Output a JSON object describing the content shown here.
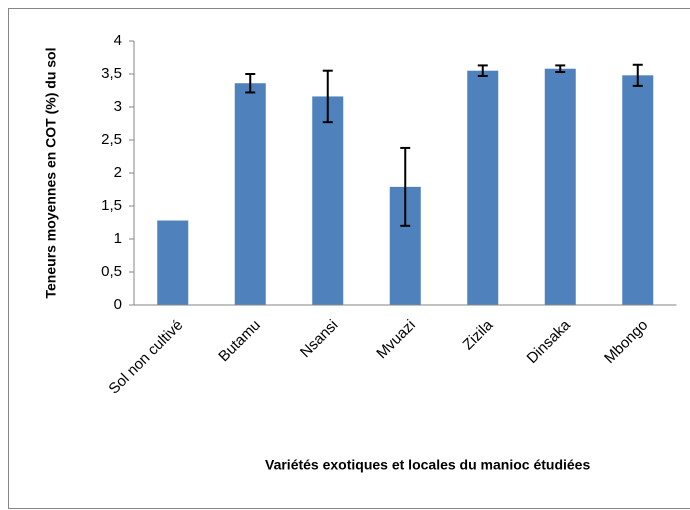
{
  "chart_data": {
    "type": "bar",
    "ylabel": "Teneurs moyennes en COT (%) du sol",
    "xlabel": "Variétés exotiques et locales du manioc étudiées",
    "categories": [
      "Sol non cultivé",
      "Butamu",
      "Nsansi",
      "Mvuazi",
      "Zizila",
      "Dinsaka",
      "Mbongo"
    ],
    "values": [
      1.28,
      3.36,
      3.16,
      1.79,
      3.55,
      3.58,
      3.48
    ],
    "errors": [
      null,
      0.14,
      0.39,
      0.59,
      0.08,
      0.05,
      0.16
    ],
    "color": "#4f81bd",
    "ylim": [
      0,
      4
    ],
    "yticks": [
      0,
      {
        "value": 0.5,
        "label": "0,5"
      },
      1,
      {
        "value": 1.5,
        "label": "1,5"
      },
      2,
      {
        "value": 2.5,
        "label": "2,5"
      },
      3,
      {
        "value": 3.5,
        "label": "3,5"
      },
      4
    ],
    "grid": false
  }
}
